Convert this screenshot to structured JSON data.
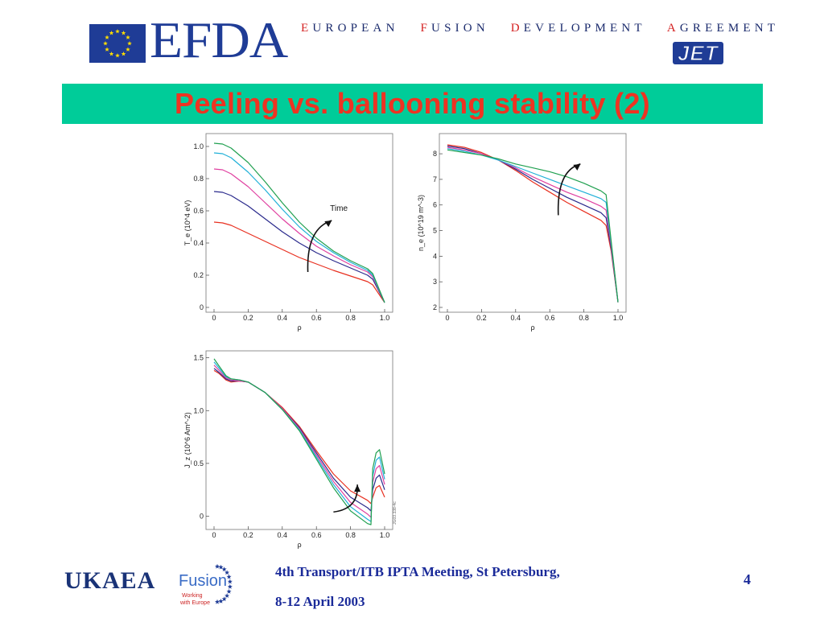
{
  "header": {
    "logo_text": "EFDA",
    "agreement": [
      {
        "initial": "E",
        "rest": "UROPEAN"
      },
      {
        "initial": "F",
        "rest": "USION"
      },
      {
        "initial": "D",
        "rest": "EVELOPMENT"
      },
      {
        "initial": "A",
        "rest": "GREEMENT"
      }
    ],
    "jet_logo": "JET",
    "title": "Peeling vs. ballooning stability (2)"
  },
  "footer": {
    "ukaea": "UKAEA",
    "fusion": "Fusion",
    "fusion_sub1": "Working",
    "fusion_sub2": "with Europe",
    "line1": "4th Transport/ITB IPTA Meeting, St Petersburg,",
    "line2": "8-12 April 2003",
    "page": "4"
  },
  "colors": {
    "title_band": "#00cc99",
    "title_text": "#ee3322",
    "series": [
      "#e83020",
      "#2a2a8c",
      "#e040a0",
      "#20b0d8",
      "#20a050"
    ]
  },
  "chart_data": [
    {
      "type": "line",
      "id": "te",
      "ylabel": "T_e (10^4 eV)",
      "xlabel": "ρ",
      "xlim": [
        0,
        1
      ],
      "ylim": [
        0,
        1.05
      ],
      "xticks": [
        "0",
        "0.2",
        "0.4",
        "0.6",
        "0.8",
        "1.0"
      ],
      "yticks": [
        "0",
        "0.2",
        "0.4",
        "0.6",
        "0.8",
        "1.0"
      ],
      "annotation": "Time",
      "x": [
        0,
        0.05,
        0.1,
        0.2,
        0.3,
        0.4,
        0.5,
        0.6,
        0.7,
        0.8,
        0.9,
        0.93,
        1.0
      ],
      "series": [
        {
          "values": [
            0.53,
            0.525,
            0.51,
            0.46,
            0.41,
            0.36,
            0.31,
            0.27,
            0.23,
            0.195,
            0.16,
            0.14,
            0.03
          ]
        },
        {
          "values": [
            0.72,
            0.715,
            0.695,
            0.63,
            0.55,
            0.47,
            0.4,
            0.34,
            0.29,
            0.245,
            0.2,
            0.175,
            0.03
          ]
        },
        {
          "values": [
            0.86,
            0.855,
            0.83,
            0.75,
            0.65,
            0.55,
            0.46,
            0.38,
            0.32,
            0.265,
            0.22,
            0.19,
            0.03
          ]
        },
        {
          "values": [
            0.96,
            0.955,
            0.93,
            0.84,
            0.73,
            0.61,
            0.5,
            0.41,
            0.34,
            0.28,
            0.23,
            0.2,
            0.03
          ]
        },
        {
          "values": [
            1.02,
            1.015,
            0.99,
            0.9,
            0.78,
            0.65,
            0.53,
            0.43,
            0.35,
            0.29,
            0.24,
            0.21,
            0.03
          ]
        }
      ]
    },
    {
      "type": "line",
      "id": "ne",
      "ylabel": "n_e (10^19 m^-3)",
      "xlabel": "ρ",
      "xlim": [
        0,
        1
      ],
      "ylim": [
        2,
        8.6
      ],
      "xticks": [
        "0",
        "0.2",
        "0.4",
        "0.6",
        "0.8",
        "1.0"
      ],
      "yticks": [
        "2",
        "3",
        "4",
        "5",
        "6",
        "7",
        "8"
      ],
      "x": [
        0,
        0.1,
        0.2,
        0.3,
        0.4,
        0.5,
        0.6,
        0.7,
        0.8,
        0.9,
        0.93,
        0.96,
        1.0
      ],
      "series": [
        {
          "values": [
            8.35,
            8.25,
            8.05,
            7.75,
            7.35,
            6.9,
            6.5,
            6.1,
            5.75,
            5.4,
            5.2,
            4.2,
            2.2
          ]
        },
        {
          "values": [
            8.3,
            8.2,
            8.0,
            7.75,
            7.4,
            7.0,
            6.65,
            6.3,
            6.0,
            5.7,
            5.5,
            4.3,
            2.2
          ]
        },
        {
          "values": [
            8.25,
            8.15,
            8.0,
            7.75,
            7.45,
            7.1,
            6.8,
            6.5,
            6.25,
            5.95,
            5.8,
            4.4,
            2.2
          ]
        },
        {
          "values": [
            8.2,
            8.1,
            7.95,
            7.75,
            7.5,
            7.25,
            7.0,
            6.75,
            6.5,
            6.25,
            6.1,
            4.5,
            2.2
          ]
        },
        {
          "values": [
            8.15,
            8.05,
            7.95,
            7.8,
            7.6,
            7.45,
            7.3,
            7.1,
            6.85,
            6.55,
            6.4,
            4.6,
            2.2
          ]
        }
      ]
    },
    {
      "type": "line",
      "id": "jz",
      "ylabel": "J_z (10^6 Am^-2)",
      "xlabel": "ρ",
      "xlim": [
        0,
        1
      ],
      "ylim": [
        -0.08,
        1.52
      ],
      "xticks": [
        "0",
        "0.2",
        "0.4",
        "0.6",
        "0.8",
        "1.0"
      ],
      "yticks": [
        "0",
        "0.5",
        "1.0",
        "1.5"
      ],
      "figure_id": "JG03.338-4c",
      "series": [
        {
          "x": [
            0,
            0.03,
            0.07,
            0.1,
            0.15,
            0.2,
            0.3,
            0.4,
            0.5,
            0.6,
            0.7,
            0.8,
            0.9,
            0.92,
            0.93,
            0.95,
            0.97,
            1.0
          ],
          "values": [
            1.38,
            1.35,
            1.29,
            1.27,
            1.28,
            1.27,
            1.17,
            1.03,
            0.85,
            0.62,
            0.4,
            0.24,
            0.15,
            0.12,
            0.18,
            0.27,
            0.29,
            0.18
          ]
        },
        {
          "x": [
            0,
            0.03,
            0.07,
            0.1,
            0.15,
            0.2,
            0.3,
            0.4,
            0.5,
            0.6,
            0.7,
            0.8,
            0.9,
            0.92,
            0.93,
            0.95,
            0.97,
            1.0
          ],
          "values": [
            1.4,
            1.36,
            1.3,
            1.28,
            1.28,
            1.27,
            1.17,
            1.02,
            0.84,
            0.6,
            0.36,
            0.18,
            0.08,
            0.05,
            0.25,
            0.36,
            0.39,
            0.25
          ]
        },
        {
          "x": [
            0,
            0.03,
            0.07,
            0.1,
            0.15,
            0.2,
            0.3,
            0.4,
            0.5,
            0.6,
            0.7,
            0.8,
            0.9,
            0.92,
            0.93,
            0.95,
            0.97,
            1.0
          ],
          "values": [
            1.43,
            1.38,
            1.31,
            1.29,
            1.28,
            1.27,
            1.17,
            1.02,
            0.83,
            0.58,
            0.33,
            0.13,
            0.02,
            -0.01,
            0.32,
            0.45,
            0.48,
            0.3
          ]
        },
        {
          "x": [
            0,
            0.03,
            0.07,
            0.1,
            0.15,
            0.2,
            0.3,
            0.4,
            0.5,
            0.6,
            0.7,
            0.8,
            0.9,
            0.92,
            0.93,
            0.95,
            0.97,
            1.0
          ],
          "values": [
            1.46,
            1.4,
            1.32,
            1.3,
            1.29,
            1.27,
            1.17,
            1.01,
            0.82,
            0.56,
            0.3,
            0.09,
            -0.03,
            -0.05,
            0.38,
            0.53,
            0.56,
            0.35
          ]
        },
        {
          "x": [
            0,
            0.03,
            0.07,
            0.1,
            0.15,
            0.2,
            0.3,
            0.4,
            0.5,
            0.6,
            0.7,
            0.8,
            0.9,
            0.92,
            0.93,
            0.95,
            0.97,
            1.0
          ],
          "values": [
            1.49,
            1.42,
            1.33,
            1.3,
            1.29,
            1.27,
            1.17,
            1.01,
            0.81,
            0.54,
            0.27,
            0.05,
            -0.07,
            -0.08,
            0.45,
            0.6,
            0.63,
            0.4
          ]
        }
      ]
    }
  ]
}
